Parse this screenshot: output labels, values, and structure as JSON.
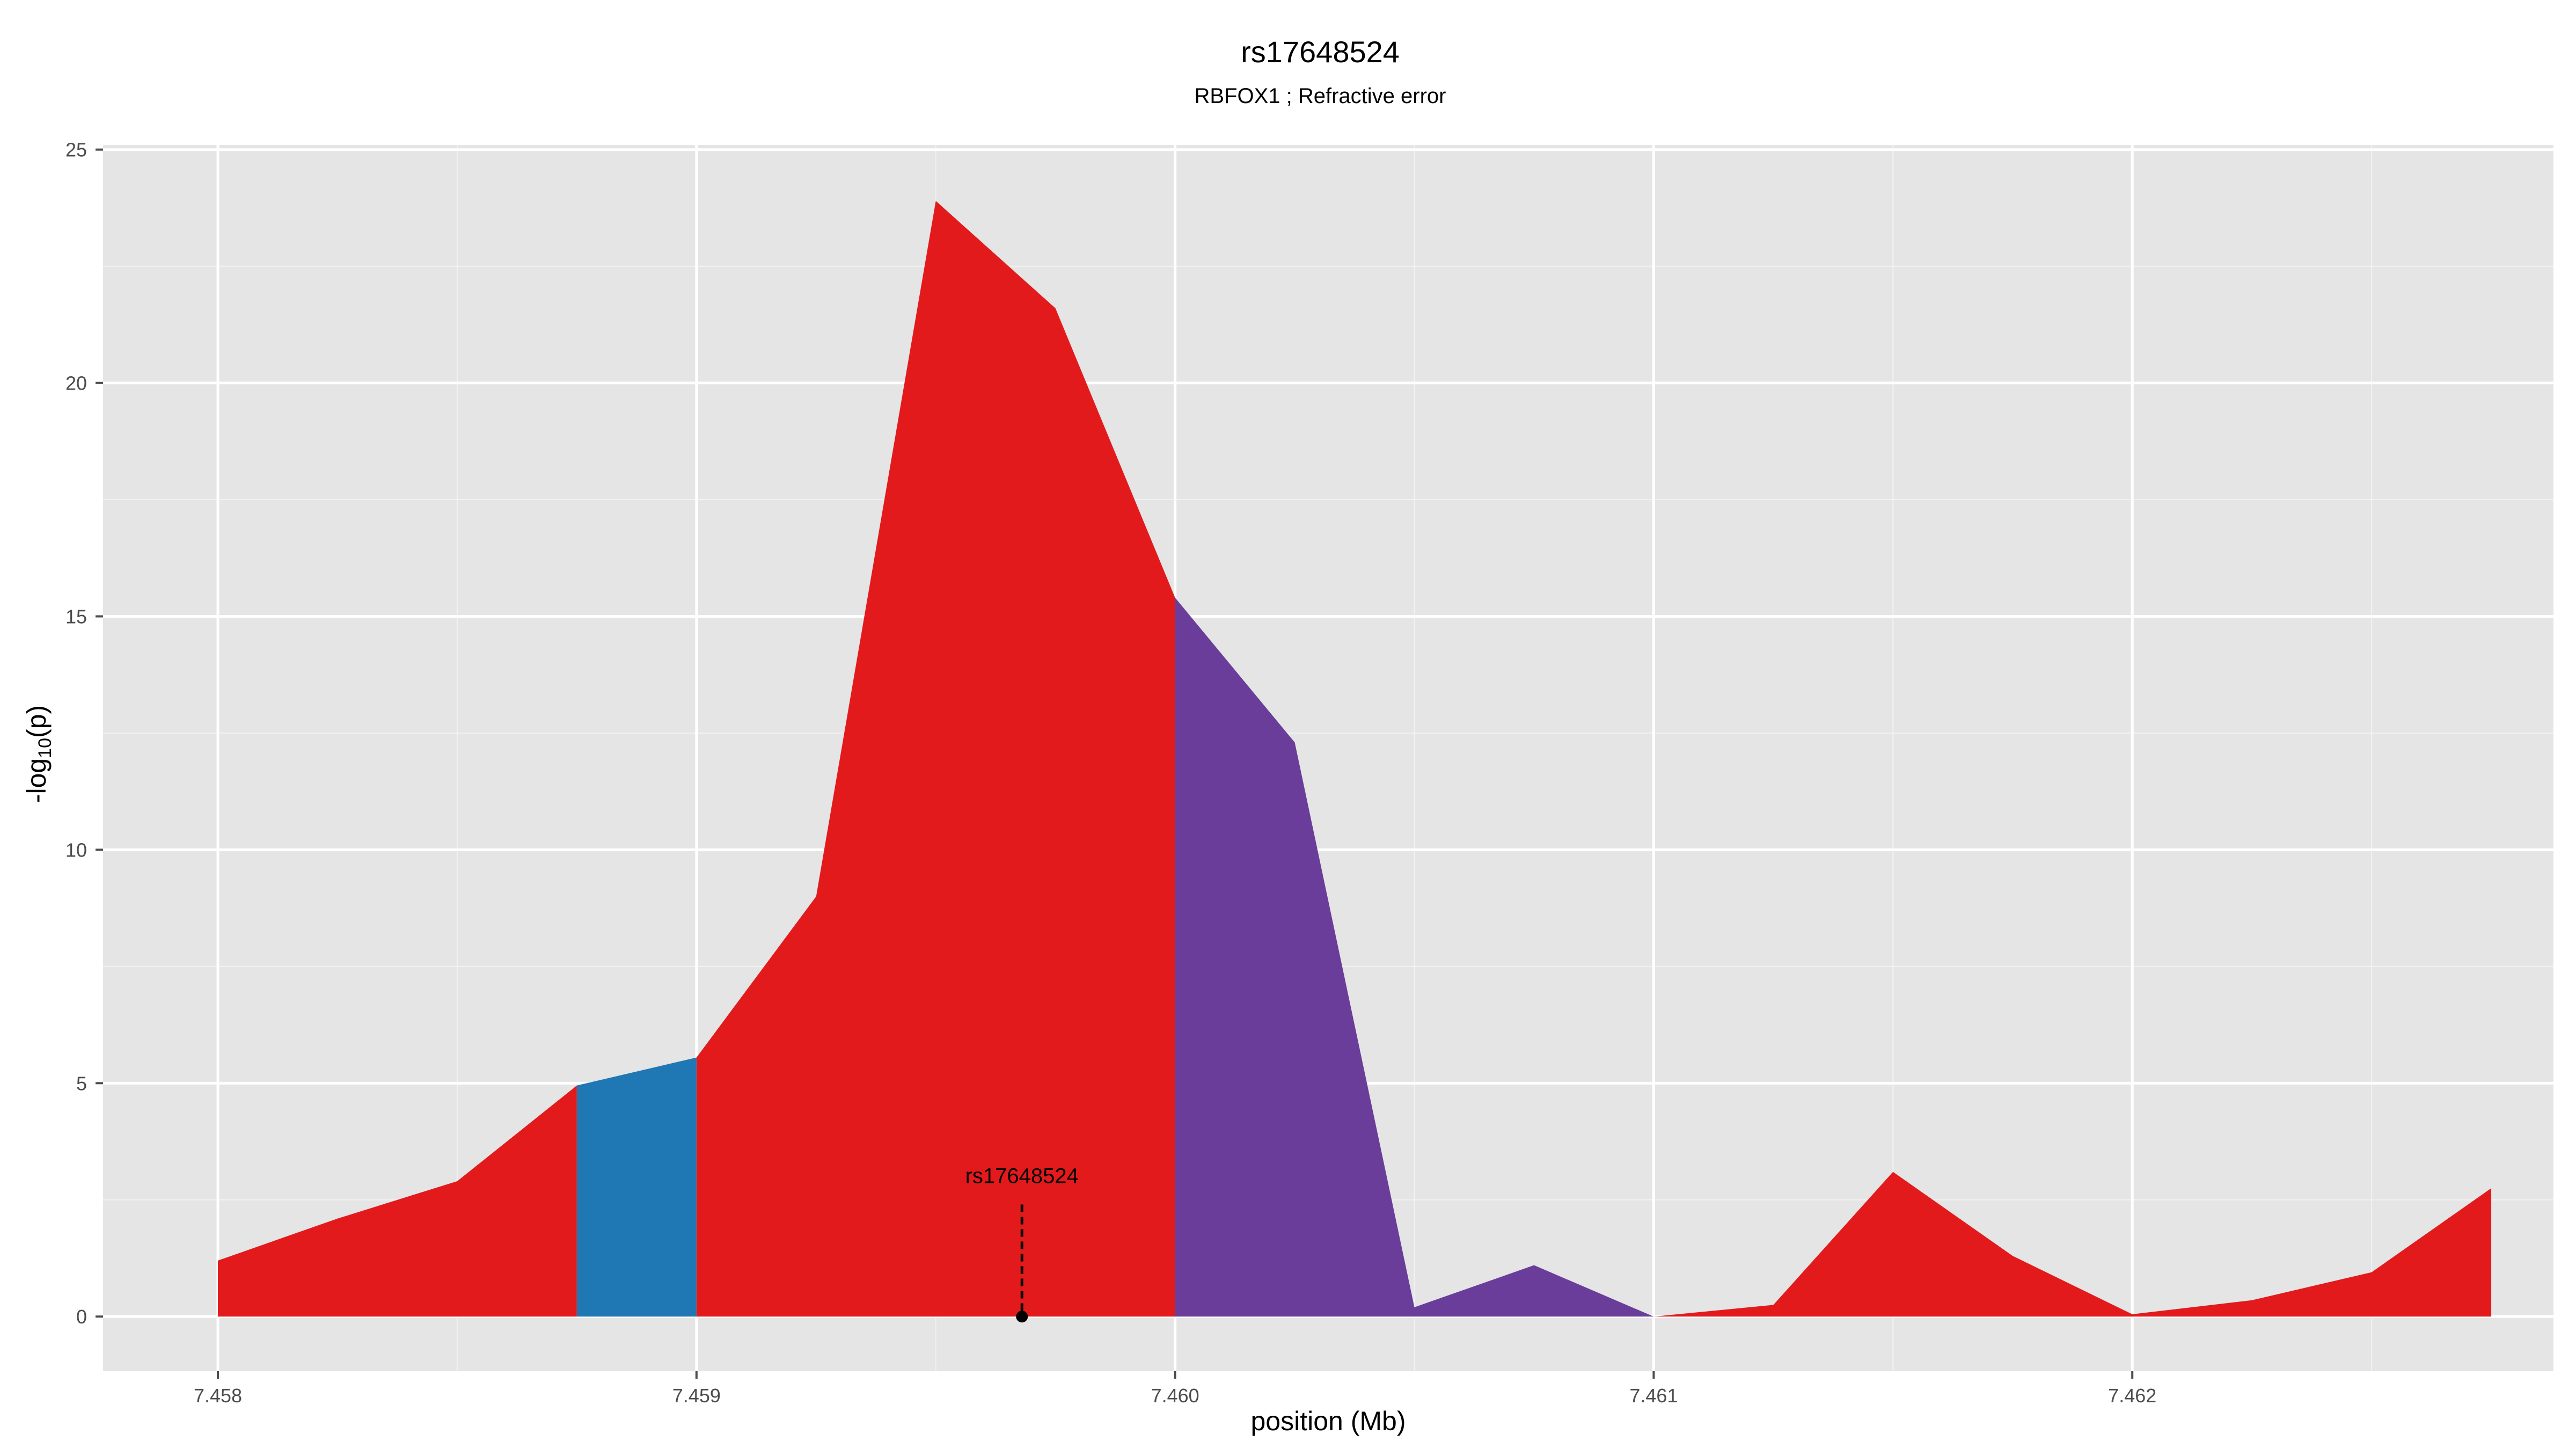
{
  "chart_data": {
    "type": "area",
    "title": "rs17648524",
    "subtitle": "RBFOX1 ; Refractive error",
    "xlabel": "position (Mb)",
    "ylabel_main": "-log",
    "ylabel_sub": "10",
    "ylabel_tail": "(p)",
    "xlim": [
      7.45776,
      7.46288
    ],
    "ylim": [
      -1.17,
      25.1
    ],
    "x_ticks": [
      7.458,
      7.459,
      7.46,
      7.461,
      7.462
    ],
    "x_tick_labels": [
      "7.458",
      "7.459",
      "7.460",
      "7.461",
      "7.462"
    ],
    "y_ticks": [
      0,
      5,
      10,
      15,
      20,
      25
    ],
    "y_tick_labels": [
      "0",
      "5",
      "10",
      "15",
      "20",
      "25"
    ],
    "grid": true,
    "background": "#e5e5e5",
    "colors": {
      "red": "#e31a1c",
      "blue": "#1f78b4",
      "purple": "#6a3d9a"
    },
    "segments": [
      {
        "color": "red",
        "points": [
          [
            7.458,
            1.2
          ],
          [
            7.45825,
            2.1
          ],
          [
            7.4585,
            2.9
          ],
          [
            7.45875,
            4.95
          ]
        ]
      },
      {
        "color": "blue",
        "points": [
          [
            7.45875,
            4.95
          ],
          [
            7.459,
            5.55
          ]
        ]
      },
      {
        "color": "red",
        "points": [
          [
            7.459,
            5.55
          ],
          [
            7.45925,
            9.0
          ],
          [
            7.4595,
            23.9
          ],
          [
            7.45975,
            21.6
          ],
          [
            7.46,
            15.4
          ]
        ]
      },
      {
        "color": "purple",
        "points": [
          [
            7.46,
            15.4
          ],
          [
            7.46025,
            12.3
          ],
          [
            7.4605,
            0.2
          ],
          [
            7.46075,
            1.1
          ],
          [
            7.461,
            0.0
          ]
        ]
      },
      {
        "color": "red",
        "points": [
          [
            7.461,
            0.0
          ],
          [
            7.46125,
            0.25
          ],
          [
            7.4615,
            3.1
          ],
          [
            7.46175,
            1.3
          ],
          [
            7.462,
            0.05
          ],
          [
            7.46225,
            0.35
          ],
          [
            7.4625,
            0.95
          ],
          [
            7.46275,
            2.75
          ]
        ]
      }
    ],
    "annotation": {
      "label": "rs17648524",
      "x": 7.45968,
      "y": 0,
      "line_top": 2.4
    }
  }
}
